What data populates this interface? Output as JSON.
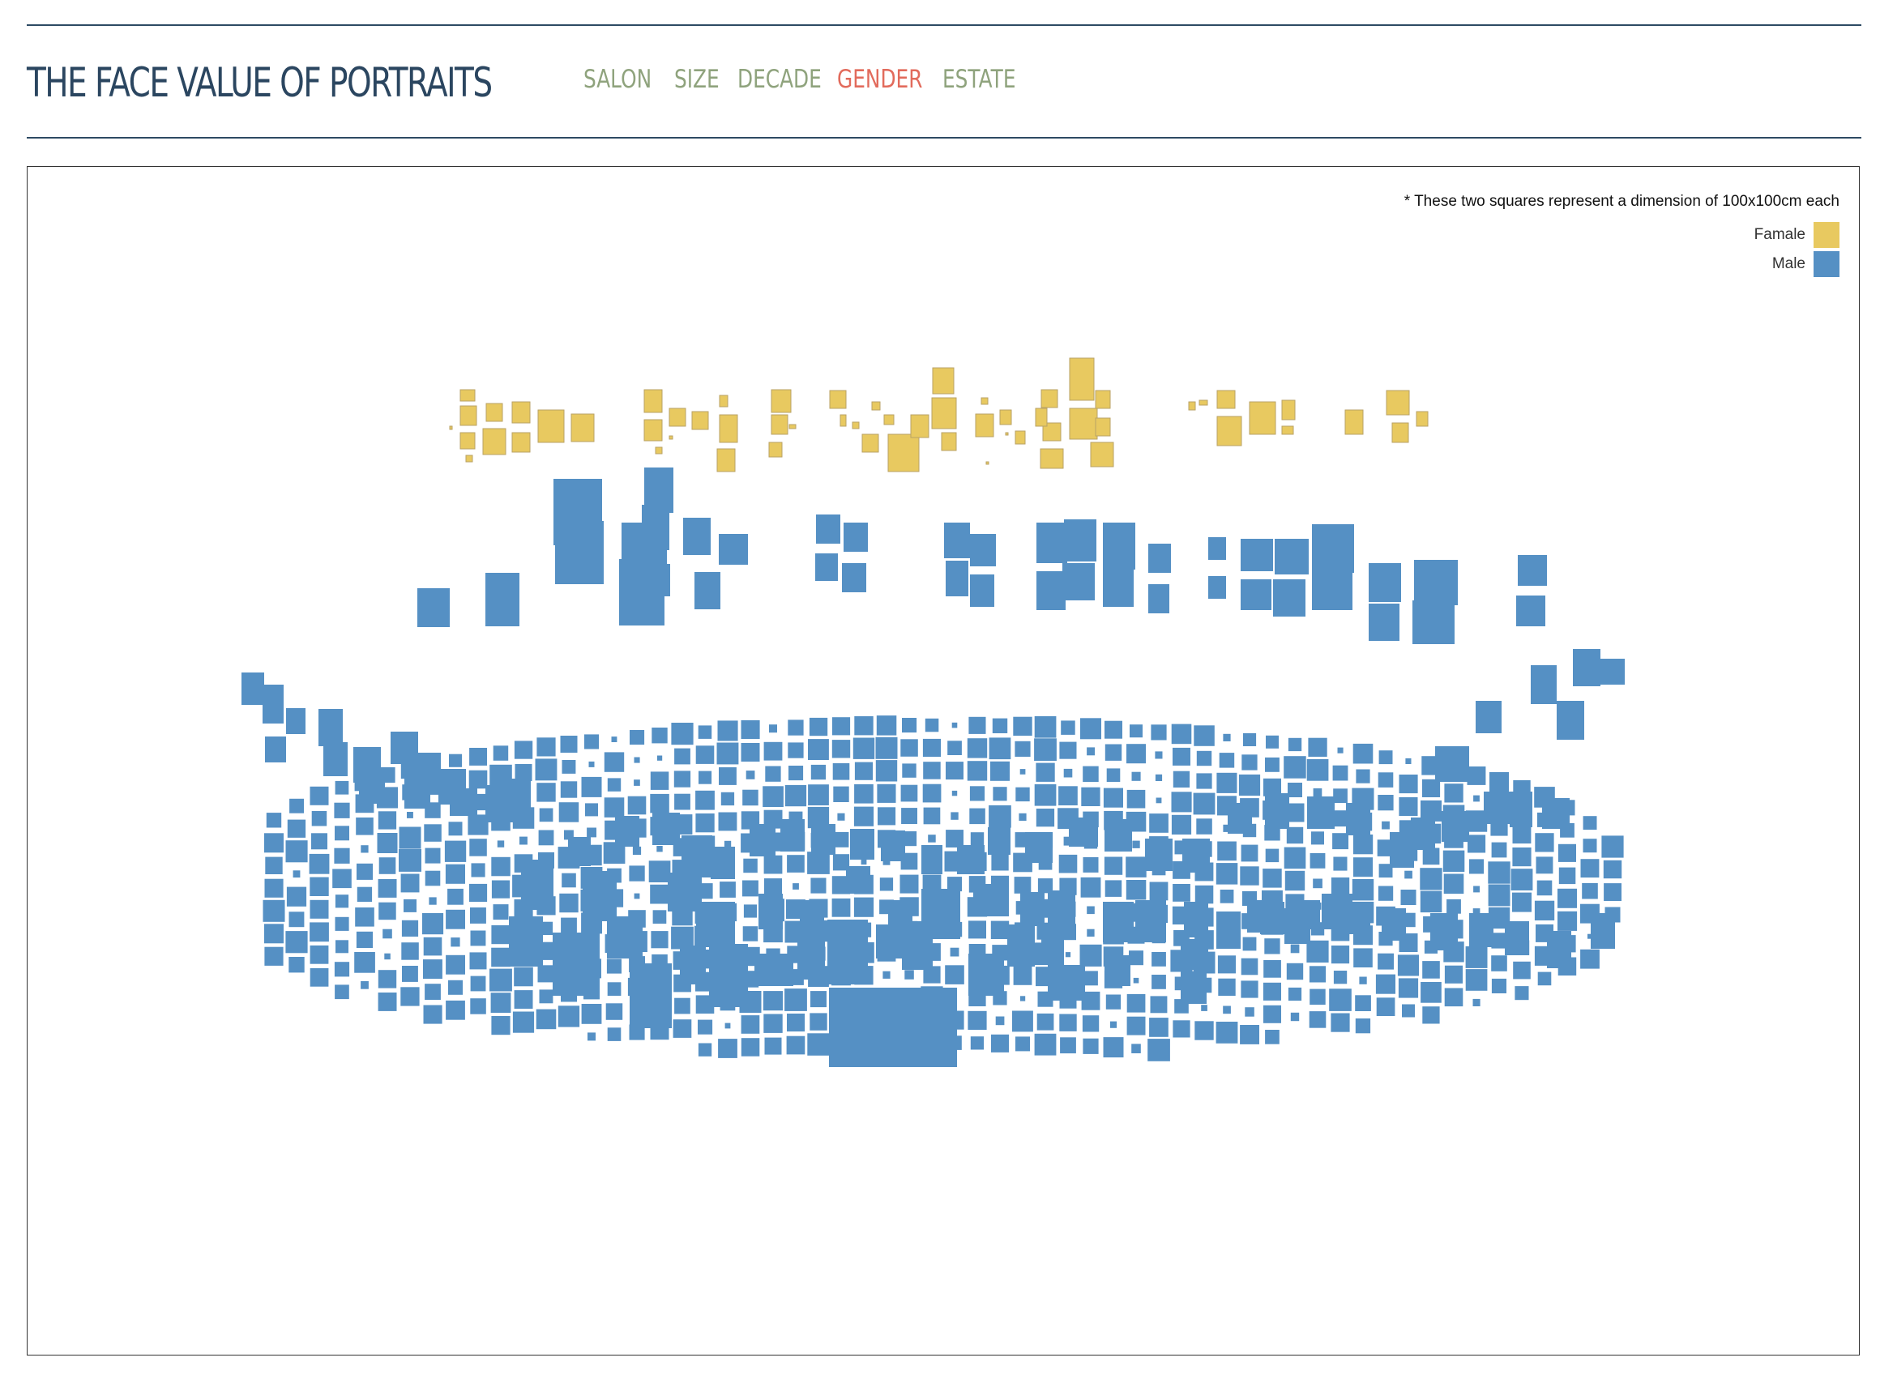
{
  "header": {
    "title": "THE FACE VALUE OF PORTRAITS",
    "nav": [
      {
        "label": "SALON",
        "active": false
      },
      {
        "label": "SIZE",
        "active": false
      },
      {
        "label": "DECADE",
        "active": false
      },
      {
        "label": "GENDER",
        "active": true
      },
      {
        "label": "ESTATE",
        "active": false
      }
    ]
  },
  "colors": {
    "rule": "#2d4a63",
    "title": "#2b4660",
    "nav_inactive": "#8fa37d",
    "nav_active": "#e26b5c",
    "female": "#e8c960",
    "female_stroke": "#b9a266",
    "male": "#5590c4"
  },
  "legend": {
    "note": "* These two squares represent a dimension of 100x100cm each",
    "items": [
      {
        "label": "Famale",
        "color": "#e8c960"
      },
      {
        "label": "Male",
        "color": "#5590c4"
      }
    ]
  }
}
